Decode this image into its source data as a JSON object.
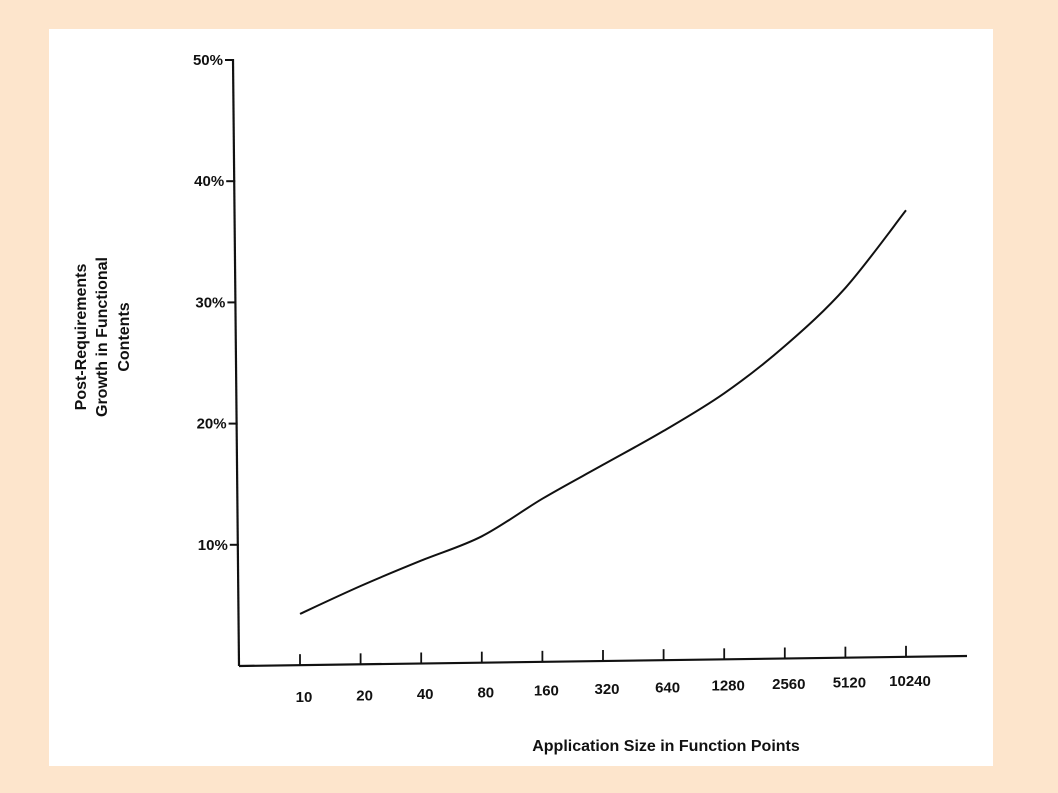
{
  "chart_data": {
    "type": "line",
    "xlabel": "Application Size in Function Points",
    "ylabel_lines": [
      "Post-Requirements",
      "Growth in Functional",
      "Contents"
    ],
    "x_scale": "log2",
    "categories": [
      "10",
      "20",
      "40",
      "80",
      "160",
      "320",
      "640",
      "1280",
      "2560",
      "5120",
      "10240"
    ],
    "y_ticks": [
      "10%",
      "20%",
      "30%",
      "40%",
      "50%"
    ],
    "ylim": [
      0,
      50
    ],
    "grid": false,
    "series": [
      {
        "x": [
          10,
          20,
          40,
          80,
          160,
          320,
          640,
          1280,
          2560,
          5120,
          10240
        ],
        "values": [
          4.3,
          6.6,
          8.7,
          10.7,
          13.8,
          16.6,
          19.4,
          22.5,
          26.4,
          31.2,
          37.6
        ]
      }
    ],
    "colors": {
      "line": "#111111",
      "axis": "#111111",
      "background": "#fde5cc",
      "panel": "#ffffff"
    }
  }
}
